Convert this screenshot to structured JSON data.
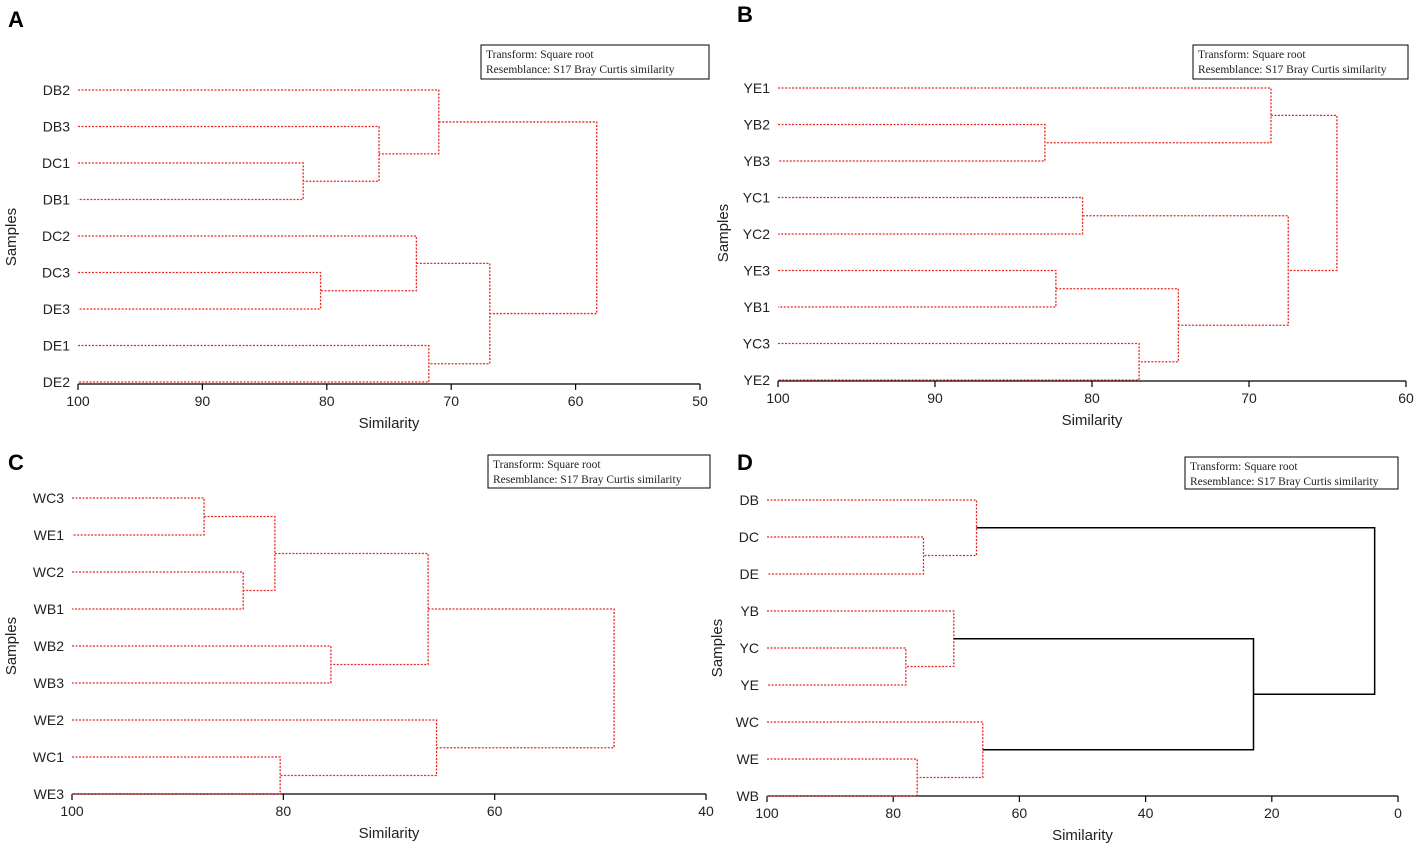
{
  "figure": {
    "colors": {
      "red": "#e8281e",
      "black": "#000000",
      "text": "#222222"
    },
    "chart_data": [
      {
        "panel": "A",
        "type": "dendrogram",
        "xlabel": "Similarity",
        "ylabel": "Samples",
        "xlim": [
          100,
          50
        ],
        "xticks": [
          100,
          90,
          80,
          70,
          60,
          50
        ],
        "notes": [
          "Transform: Square root",
          "Resemblance: S17 Bray Curtis similarity"
        ],
        "leaves": [
          "DB2",
          "DB3",
          "DC1",
          "DB1",
          "DC2",
          "DC3",
          "DE3",
          "DE1",
          "DE2"
        ],
        "merges": [
          {
            "a": "L2",
            "b": "L3",
            "sim": 81.9,
            "color": "red"
          },
          {
            "a": "L1",
            "b": "N0",
            "sim": 75.8,
            "color": "red"
          },
          {
            "a": "L0",
            "b": "N1",
            "sim": 71.0,
            "color": "red"
          },
          {
            "a": "L5",
            "b": "L6",
            "sim": 80.5,
            "color": "red"
          },
          {
            "a": "L4",
            "b": "N3",
            "sim": 72.8,
            "color": "red"
          },
          {
            "a": "L7",
            "b": "L8",
            "sim": 71.8,
            "color": "red"
          },
          {
            "a": "N4",
            "b": "N5",
            "sim": 66.9,
            "color": "red"
          },
          {
            "a": "N2",
            "b": "N6",
            "sim": 58.3,
            "color": "red"
          }
        ]
      },
      {
        "panel": "B",
        "type": "dendrogram",
        "xlabel": "Similarity",
        "ylabel": "Samples",
        "xlim": [
          100,
          60
        ],
        "xticks": [
          100,
          90,
          80,
          70,
          60
        ],
        "notes": [
          "Transform: Square root",
          "Resemblance: S17 Bray Curtis similarity"
        ],
        "leaves": [
          "YE1",
          "YB2",
          "YB3",
          "YC1",
          "YC2",
          "YE3",
          "YB1",
          "YC3",
          "YE2"
        ],
        "merges": [
          {
            "a": "L1",
            "b": "L2",
            "sim": 83.0,
            "color": "red"
          },
          {
            "a": "L0",
            "b": "N0",
            "sim": 68.6,
            "color": "red"
          },
          {
            "a": "L3",
            "b": "L4",
            "sim": 80.6,
            "color": "red"
          },
          {
            "a": "L5",
            "b": "L6",
            "sim": 82.3,
            "color": "red"
          },
          {
            "a": "L7",
            "b": "L8",
            "sim": 77.0,
            "color": "red"
          },
          {
            "a": "N3",
            "b": "N4",
            "sim": 74.5,
            "color": "red"
          },
          {
            "a": "N2",
            "b": "N5",
            "sim": 67.5,
            "color": "red"
          },
          {
            "a": "N1",
            "b": "N6",
            "sim": 64.4,
            "color": "red"
          }
        ]
      },
      {
        "panel": "C",
        "type": "dendrogram",
        "xlabel": "Similarity",
        "ylabel": "Samples",
        "xlim": [
          100,
          40
        ],
        "xticks": [
          100,
          80,
          60,
          40
        ],
        "notes": [
          "Transform: Square root",
          "Resemblance: S17 Bray Curtis similarity"
        ],
        "leaves": [
          "WC3",
          "WE1",
          "WC2",
          "WB1",
          "WB2",
          "WB3",
          "WE2",
          "WC1",
          "WE3"
        ],
        "merges": [
          {
            "a": "L0",
            "b": "L1",
            "sim": 87.5,
            "color": "red"
          },
          {
            "a": "L2",
            "b": "L3",
            "sim": 83.8,
            "color": "red"
          },
          {
            "a": "N0",
            "b": "N1",
            "sim": 80.8,
            "color": "red"
          },
          {
            "a": "L4",
            "b": "L5",
            "sim": 75.5,
            "color": "red"
          },
          {
            "a": "N2",
            "b": "N3",
            "sim": 66.3,
            "color": "red"
          },
          {
            "a": "L7",
            "b": "L8",
            "sim": 80.3,
            "color": "red"
          },
          {
            "a": "L6",
            "b": "N5",
            "sim": 65.5,
            "color": "red"
          },
          {
            "a": "N4",
            "b": "N6",
            "sim": 48.7,
            "color": "red"
          }
        ]
      },
      {
        "panel": "D",
        "type": "dendrogram",
        "xlabel": "Similarity",
        "ylabel": "Samples",
        "xlim": [
          100,
          0
        ],
        "xticks": [
          100,
          80,
          60,
          40,
          20,
          0
        ],
        "notes": [
          "Transform: Square root",
          "Resemblance: S17 Bray Curtis similarity"
        ],
        "leaves": [
          "DB",
          "DC",
          "DE",
          "YB",
          "YC",
          "YE",
          "WC",
          "WE",
          "WB"
        ],
        "merges": [
          {
            "a": "L1",
            "b": "L2",
            "sim": 75.2,
            "color": "red"
          },
          {
            "a": "L0",
            "b": "N0",
            "sim": 66.8,
            "color": "red"
          },
          {
            "a": "L4",
            "b": "L5",
            "sim": 78.0,
            "color": "red"
          },
          {
            "a": "L3",
            "b": "N2",
            "sim": 70.4,
            "color": "red"
          },
          {
            "a": "L7",
            "b": "L8",
            "sim": 76.2,
            "color": "red"
          },
          {
            "a": "L6",
            "b": "N4",
            "sim": 65.8,
            "color": "red"
          },
          {
            "a": "N3",
            "b": "N5",
            "sim": 22.9,
            "color": "black"
          },
          {
            "a": "N1",
            "b": "N6",
            "sim": 3.7,
            "color": "black"
          }
        ]
      }
    ]
  }
}
